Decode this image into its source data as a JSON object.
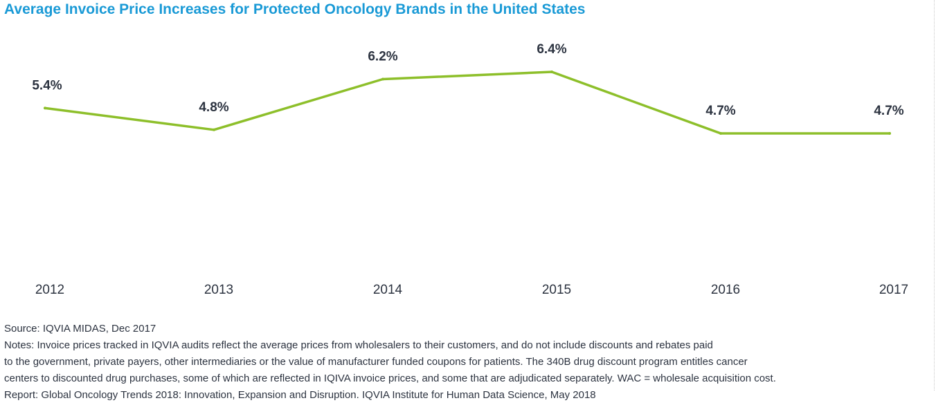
{
  "chart_data": {
    "type": "line",
    "title": "Average Invoice Price Increases for Protected Oncology Brands in the United States",
    "categories": [
      "2012",
      "2013",
      "2014",
      "2015",
      "2016",
      "2017"
    ],
    "series": [
      {
        "values": [
          5.4,
          4.8,
          6.2,
          6.4,
          4.7,
          4.7
        ],
        "labels": [
          "5.4%",
          "4.8%",
          "6.2%",
          "6.4%",
          "4.7%",
          "4.7%"
        ],
        "color": "#8dbf2a"
      }
    ],
    "xlabel": "",
    "ylabel": "",
    "grid": false,
    "legend": "none"
  },
  "footnotes": {
    "source": "Source: IQVIA MIDAS, Dec 2017",
    "notes_lines": [
      "Notes: Invoice prices tracked in IQVIA audits reflect the average prices from wholesalers to their customers, and do not include discounts and rebates paid",
      "to the government, private payers, other intermediaries or the value of manufacturer funded coupons for patients. The 340B drug discount program entitles cancer",
      "centers to discounted drug purchases, some of which are reflected in IQIVA invoice prices, and some that are adjudicated separately. WAC = wholesale acquisition cost."
    ],
    "report": "Report: Global Oncology Trends 2018: Innovation, Expansion and Disruption. IQVIA Institute for Human Data Science, May 2018"
  }
}
